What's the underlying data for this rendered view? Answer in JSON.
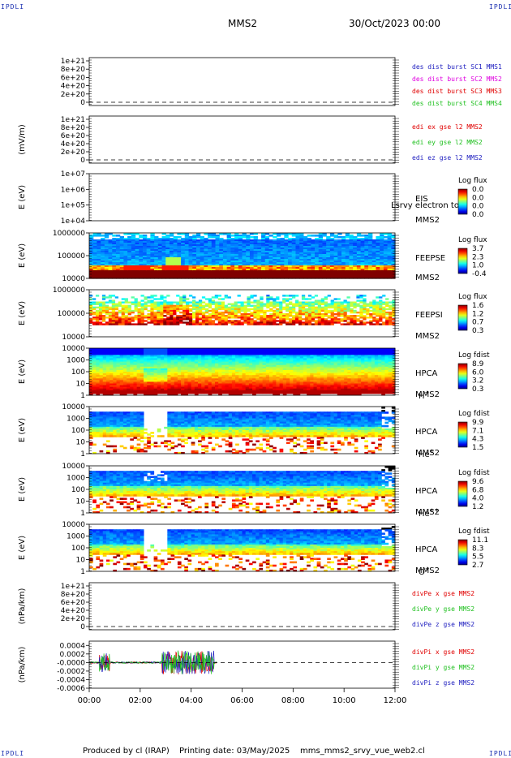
{
  "header": {
    "corner_tag": "IPDLI",
    "title": "MMS2",
    "date": "30/Oct/2023 00:00"
  },
  "footer": {
    "produced_by": "Produced by cl (IRAP)",
    "printing_date": "Printing date: 03/May/2025",
    "script_name": "mms_mms2_srvy_vue_web2.cl"
  },
  "time_axis": [
    "00:00",
    "02:00",
    "04:00",
    "06:00",
    "08:00",
    "10:00",
    "12:00"
  ],
  "colors": {
    "red": "#e00000",
    "magenta": "#e000e0",
    "green": "#20c020",
    "blue": "#2020c0",
    "dashed": "#000000"
  },
  "chart_data": [
    {
      "type": "line",
      "ylabel": "",
      "yticks": [
        "1e+21",
        "8e+20",
        "6e+20",
        "4e+20",
        "2e+20",
        "0"
      ],
      "ylim": [
        0,
        1e+21
      ],
      "legend": [
        {
          "text": "des dist burst SC1 MMS1",
          "color": "#2020c0"
        },
        {
          "text": "des dist burst SC2 MMS2",
          "color": "#e000e0"
        },
        {
          "text": "des dist burst SC3 MMS3",
          "color": "#e00000"
        },
        {
          "text": "des dist burst SC4 MMS4",
          "color": "#20c020"
        }
      ],
      "dashed_zero": true
    },
    {
      "type": "line",
      "ylabel": "(mV/m)",
      "yticks": [
        "1e+21",
        "8e+20",
        "6e+20",
        "4e+20",
        "2e+20",
        "0"
      ],
      "ylim": [
        0,
        1e+21
      ],
      "legend": [
        {
          "text": "edi ex gse l2 MMS2",
          "color": "#e00000"
        },
        {
          "text": "edi ey gse l2 MMS2",
          "color": "#20c020"
        },
        {
          "text": "edi ez gse l2 MMS2",
          "color": "#2020c0"
        }
      ],
      "dashed_zero": true
    },
    {
      "type": "heatmap",
      "ylabel": "E (eV)",
      "yticks": [
        "1e+07",
        "1e+06",
        "1e+05",
        "1e+04"
      ],
      "instrument": [
        "EIS",
        "MMS2"
      ],
      "overlay_label": "Lsrvy electron to",
      "colorbar": {
        "title": "Log flux",
        "ticks": [
          "0.0",
          "0.0",
          "0.0",
          "0.0"
        ]
      },
      "empty": true
    },
    {
      "type": "heatmap",
      "ylabel": "E (eV)",
      "yticks": [
        "1000000",
        "100000",
        "10000"
      ],
      "instrument": [
        "FEEPSE",
        "MMS2"
      ],
      "colorbar": {
        "title": "Log flux",
        "ticks": [
          "3.7",
          "2.3",
          "1.0",
          "-0.4"
        ]
      }
    },
    {
      "type": "heatmap",
      "ylabel": "E (eV)",
      "yticks": [
        "1000000",
        "100000",
        "10000"
      ],
      "instrument": [
        "FEEPSI",
        "MMS2"
      ],
      "colorbar": {
        "title": "Log flux",
        "ticks": [
          "1.6",
          "1.2",
          "0.7",
          "0.3"
        ]
      }
    },
    {
      "type": "heatmap",
      "ylabel": "E (eV)",
      "yticks": [
        "10000",
        "1000",
        "100",
        "10",
        "1"
      ],
      "instrument": [
        "HPCA",
        "MMS2"
      ],
      "species": "H",
      "species_sup": "+",
      "colorbar": {
        "title": "Log fdist",
        "ticks": [
          "8.9",
          "6.0",
          "3.2",
          "0.3"
        ]
      }
    },
    {
      "type": "heatmap",
      "ylabel": "E (eV)",
      "yticks": [
        "10000",
        "1000",
        "100",
        "10",
        "1"
      ],
      "instrument": [
        "HPCA",
        "MMS2"
      ],
      "species": "He",
      "species_sup": "+",
      "colorbar": {
        "title": "Log fdist",
        "ticks": [
          "9.9",
          "7.1",
          "4.3",
          "1.5"
        ]
      }
    },
    {
      "type": "heatmap",
      "ylabel": "E (eV)",
      "yticks": [
        "10000",
        "1000",
        "100",
        "10",
        "1"
      ],
      "instrument": [
        "HPCA",
        "MMS2"
      ],
      "species": "He",
      "species_sup": "++",
      "colorbar": {
        "title": "Log fdist",
        "ticks": [
          "9.6",
          "6.8",
          "4.0",
          "1.2"
        ]
      }
    },
    {
      "type": "heatmap",
      "ylabel": "E (eV)",
      "yticks": [
        "10000",
        "1000",
        "100",
        "10",
        "1"
      ],
      "instrument": [
        "HPCA",
        "MMS2"
      ],
      "species": "O",
      "species_sup": "+",
      "colorbar": {
        "title": "Log fdist",
        "ticks": [
          "11.1",
          "8.3",
          "5.5",
          "2.7"
        ]
      }
    },
    {
      "type": "line",
      "ylabel": "(nPa/km)",
      "yticks": [
        "1e+21",
        "8e+20",
        "6e+20",
        "4e+20",
        "2e+20",
        "0"
      ],
      "ylim": [
        0,
        1e+21
      ],
      "legend": [
        {
          "text": "divPe x gse MMS2",
          "color": "#e00000"
        },
        {
          "text": "divPe y gse MMS2",
          "color": "#20c020"
        },
        {
          "text": "divPe z gse MMS2",
          "color": "#2020c0"
        }
      ],
      "dashed_zero": true
    },
    {
      "type": "line",
      "ylabel": "(nPa/km)",
      "yticks": [
        "0.0004",
        "0.0002",
        "-0.0000",
        "-0.0002",
        "-0.0004",
        "-0.0006"
      ],
      "ylim": [
        -0.0006,
        0.0005
      ],
      "legend": [
        {
          "text": "divPi x gse MMS2",
          "color": "#e00000"
        },
        {
          "text": "divPi y gse MMS2",
          "color": "#20c020"
        },
        {
          "text": "divPi z gse MMS2",
          "color": "#2020c0"
        }
      ],
      "dashed_zero": true,
      "data_span_hours": [
        0,
        5
      ]
    }
  ]
}
